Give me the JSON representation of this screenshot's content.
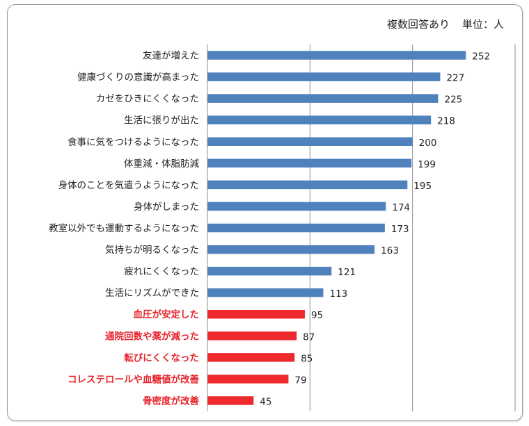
{
  "note": {
    "multi": "複数回答あり",
    "unit": "単位：人"
  },
  "colors": {
    "normal": "#4f81bd",
    "highlight": "#ee2a2c"
  },
  "chart_data": {
    "type": "bar",
    "orientation": "horizontal",
    "grid": "vertical",
    "xlim": [
      0,
      300
    ],
    "items": [
      {
        "label": "友達が増えた",
        "value": 252,
        "highlight": false
      },
      {
        "label": "健康づくりの意識が高まった",
        "value": 227,
        "highlight": false
      },
      {
        "label": "カゼをひきにくくなった",
        "value": 225,
        "highlight": false
      },
      {
        "label": "生活に張りが出た",
        "value": 218,
        "highlight": false
      },
      {
        "label": "食事に気をつけるようになった",
        "value": 200,
        "highlight": false
      },
      {
        "label": "体重減・体脂肪減",
        "value": 199,
        "highlight": false
      },
      {
        "label": "身体のことを気遣うようになった",
        "value": 195,
        "highlight": false
      },
      {
        "label": "身体がしまった",
        "value": 174,
        "highlight": false
      },
      {
        "label": "教室以外でも運動するようになった",
        "value": 173,
        "highlight": false
      },
      {
        "label": "気持ちが明るくなった",
        "value": 163,
        "highlight": false
      },
      {
        "label": "疲れにくくなった",
        "value": 121,
        "highlight": false
      },
      {
        "label": "生活にリズムができた",
        "value": 113,
        "highlight": false
      },
      {
        "label": "血圧が安定した",
        "value": 95,
        "highlight": true
      },
      {
        "label": "通院回数や薬が減った",
        "value": 87,
        "highlight": true
      },
      {
        "label": "転びにくくなった",
        "value": 85,
        "highlight": true
      },
      {
        "label": "コレステロールや血糖値が改善",
        "value": 79,
        "highlight": true
      },
      {
        "label": "骨密度が改善",
        "value": 45,
        "highlight": true
      }
    ]
  }
}
